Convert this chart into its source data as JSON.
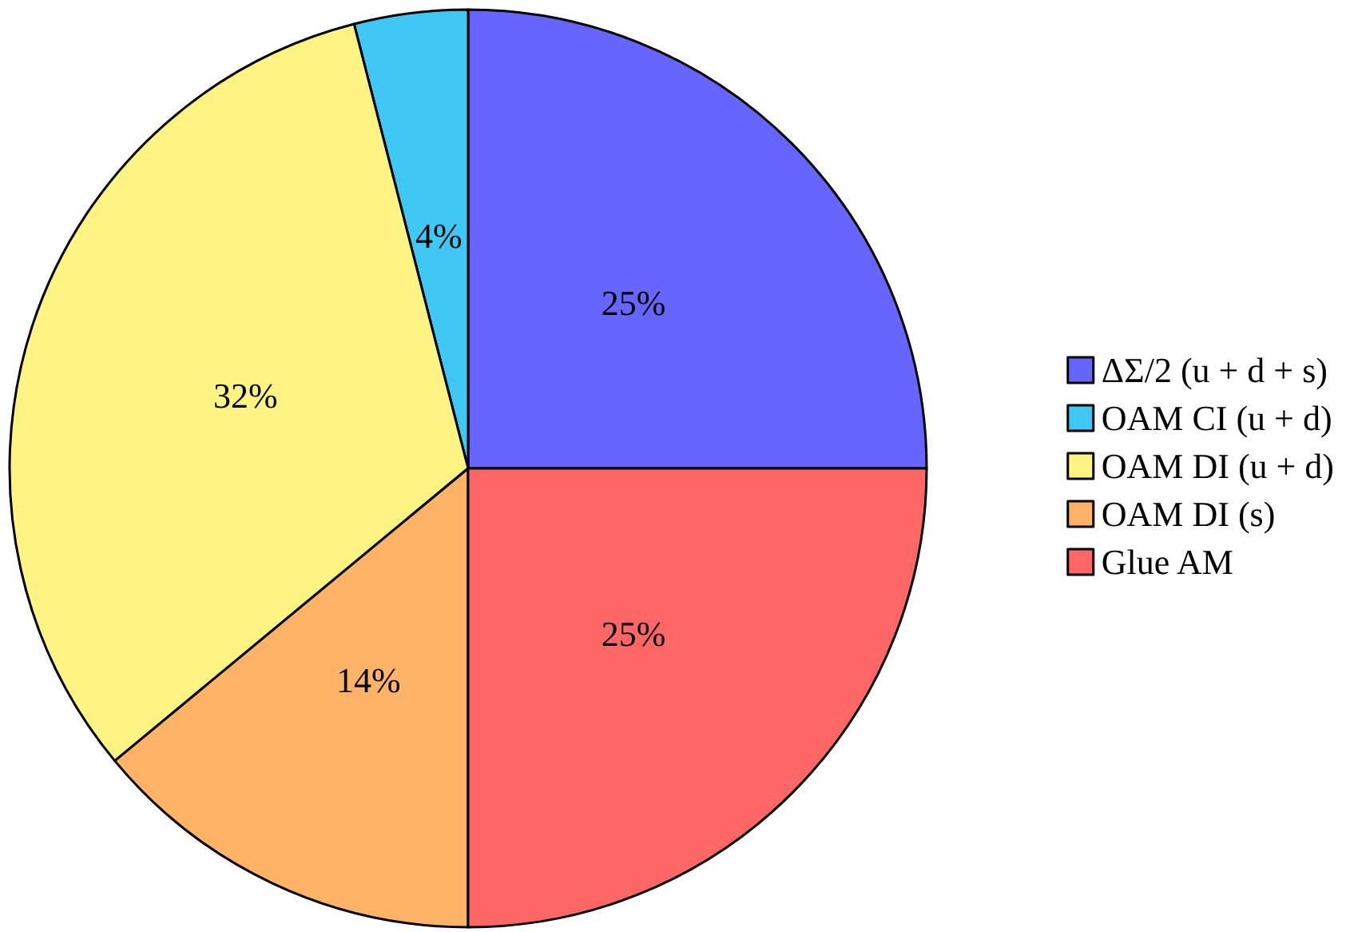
{
  "chart_data": {
    "type": "pie",
    "categories": [
      "ΔΣ/2 (u + d + s)",
      "OAM CI (u + d)",
      "OAM DI (u + d)",
      "OAM DI (s)",
      "Glue AM"
    ],
    "values": [
      25,
      4,
      32,
      14,
      25
    ],
    "colors": [
      "#6666ff",
      "#40c8f4",
      "#fff384",
      "#ffb366",
      "#ff6666"
    ],
    "value_labels": [
      "25%",
      "4%",
      "32%",
      "14%",
      "25%"
    ],
    "legend": "right"
  }
}
